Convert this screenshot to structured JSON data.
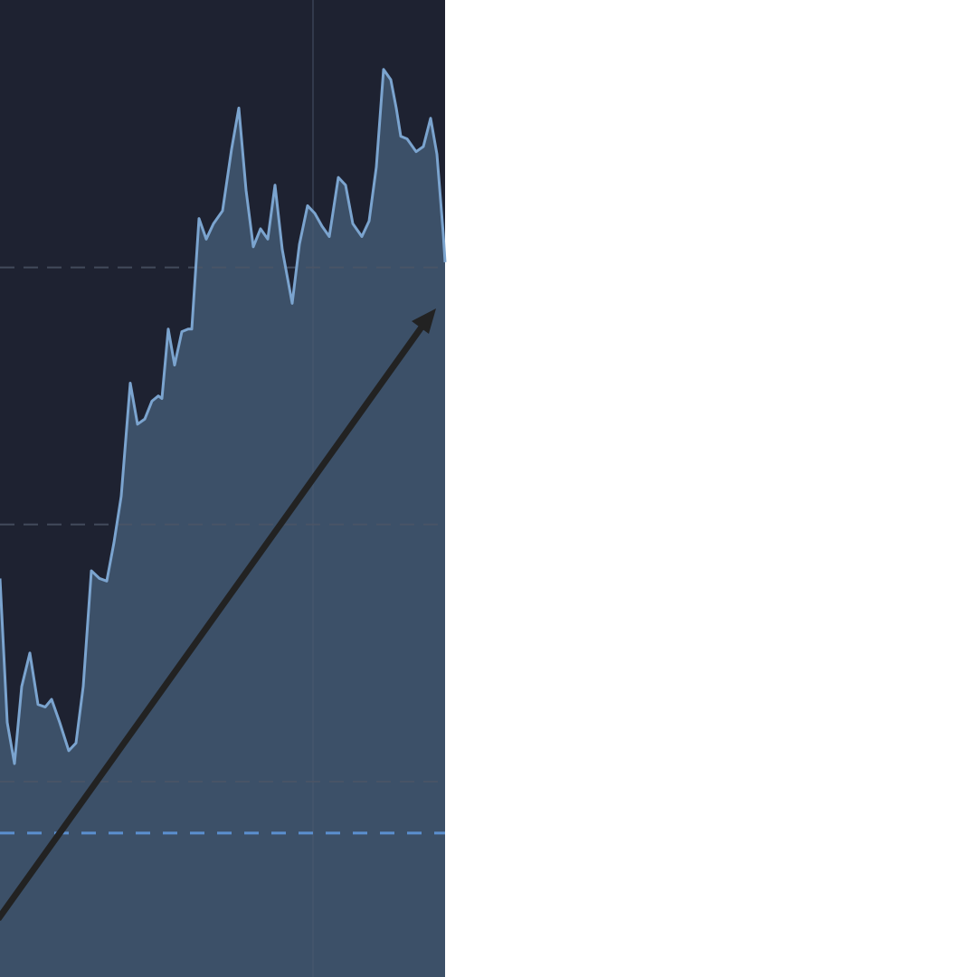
{
  "chart_data": {
    "type": "area",
    "x": [
      0,
      8,
      16,
      24,
      33,
      42,
      50,
      57,
      66,
      76,
      84,
      92,
      101,
      110,
      118,
      126,
      134,
      144,
      152,
      160,
      168,
      175,
      179,
      186,
      193,
      201,
      208,
      212,
      220,
      228,
      236,
      246,
      256,
      264,
      272,
      280,
      288,
      296,
      304,
      312,
      323,
      331,
      340,
      348,
      356,
      364,
      374,
      382,
      390,
      400,
      408,
      416,
      424,
      432,
      438,
      443,
      450,
      460,
      468,
      476,
      483,
      490,
      492
    ],
    "values": [
      1.79,
      1.23,
      1.07,
      1.37,
      1.5,
      1.3,
      1.29,
      1.32,
      1.23,
      1.12,
      1.15,
      1.37,
      1.82,
      1.79,
      1.78,
      1.93,
      2.11,
      2.55,
      2.39,
      2.41,
      2.48,
      2.5,
      2.49,
      2.76,
      2.62,
      2.75,
      2.76,
      2.76,
      3.19,
      3.11,
      3.17,
      3.22,
      3.46,
      3.62,
      3.3,
      3.08,
      3.15,
      3.11,
      3.32,
      3.07,
      2.86,
      3.09,
      3.24,
      3.21,
      3.16,
      3.12,
      3.35,
      3.32,
      3.17,
      3.12,
      3.18,
      3.39,
      3.77,
      3.73,
      3.62,
      3.51,
      3.5,
      3.45,
      3.47,
      3.58,
      3.44,
      3.13,
      3.02
    ],
    "xlim": [
      0,
      492
    ],
    "ylim": [
      0.24,
      4.04
    ],
    "ygrid": [
      1,
      2,
      3
    ],
    "xgrid": [
      346
    ],
    "reference_line": 0.8,
    "color": "#7ba4cf",
    "fill_color": "#3c5068",
    "background": "#1e2231"
  }
}
